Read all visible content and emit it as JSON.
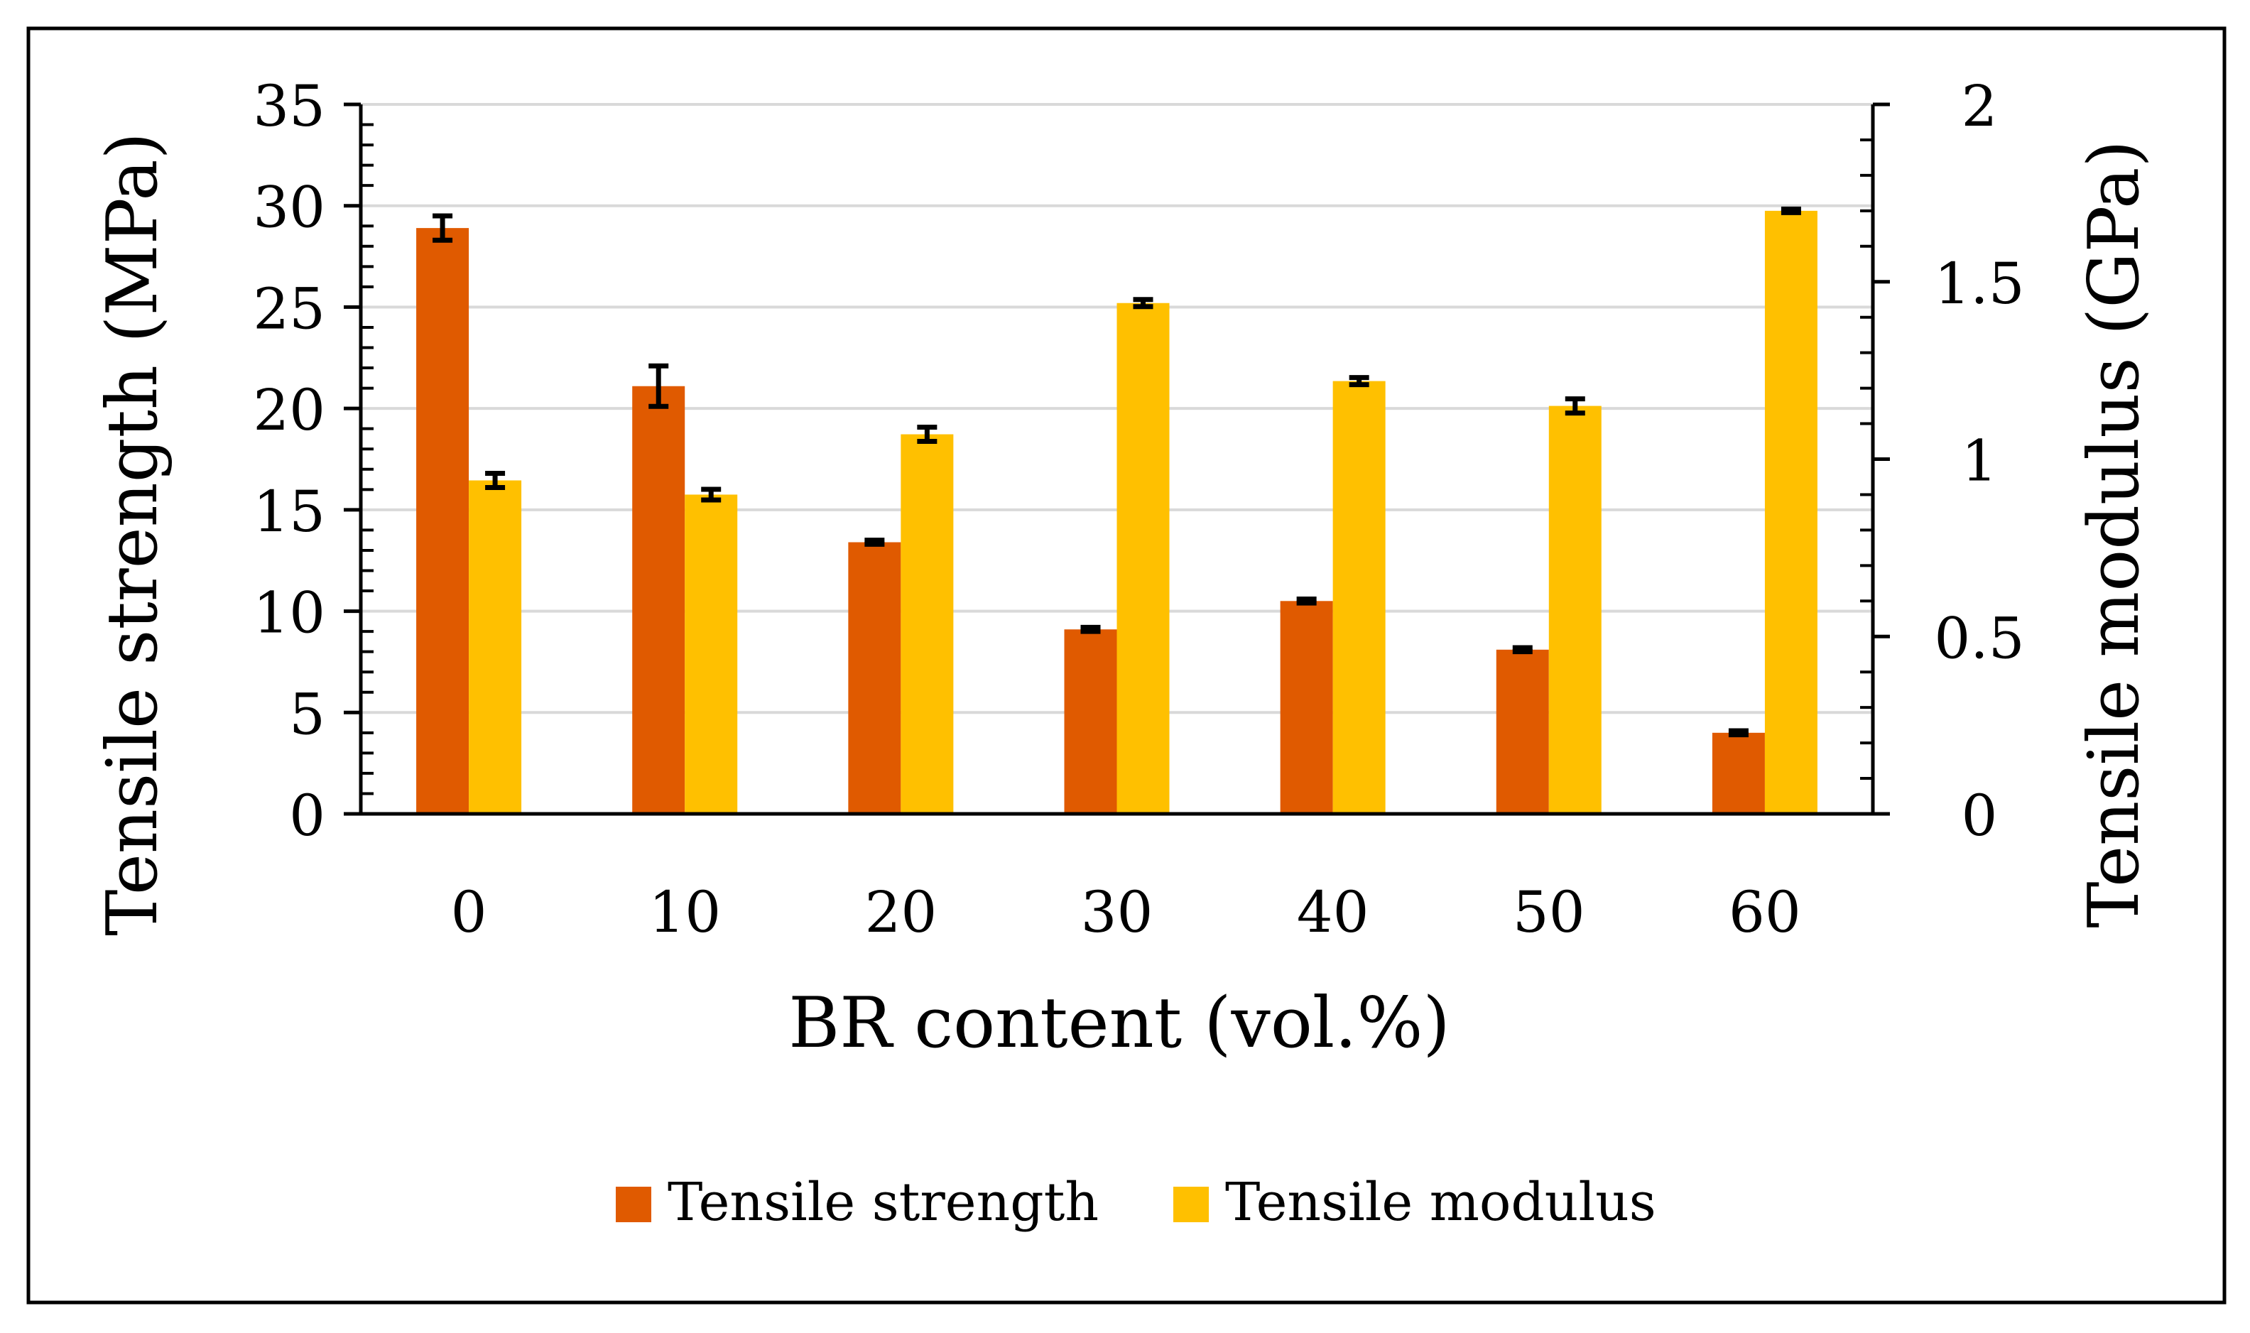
{
  "chart_data": {
    "type": "bar",
    "xlabel": "BR content (vol.%)",
    "ylabel_left": "Tensile strength (MPa)",
    "ylabel_right": "Tensile modulus (GPa)",
    "categories": [
      "0",
      "10",
      "20",
      "30",
      "40",
      "50",
      "60"
    ],
    "ylim_left": [
      0,
      35
    ],
    "yticks_left": [
      "0",
      "5",
      "10",
      "15",
      "20",
      "25",
      "30",
      "35"
    ],
    "ylim_right": [
      0,
      2
    ],
    "yticks_right": [
      "0",
      "0.5",
      "1",
      "1.5",
      "2"
    ],
    "grid": true,
    "legend_position": "bottom",
    "series": [
      {
        "name": "Tensile strength",
        "axis": "left",
        "color": "#E05A00",
        "values": [
          28.9,
          21.1,
          13.4,
          9.1,
          10.5,
          8.1,
          4.0
        ],
        "errors": [
          0.6,
          1.0,
          0.1,
          0.1,
          0.1,
          0.1,
          0.1
        ]
      },
      {
        "name": "Tensile modulus",
        "axis": "right",
        "color": "#FFC000",
        "values": [
          0.94,
          0.9,
          1.07,
          1.44,
          1.22,
          1.15,
          1.7
        ],
        "errors": [
          0.02,
          0.015,
          0.02,
          0.01,
          0.01,
          0.02,
          0.005
        ]
      }
    ]
  }
}
